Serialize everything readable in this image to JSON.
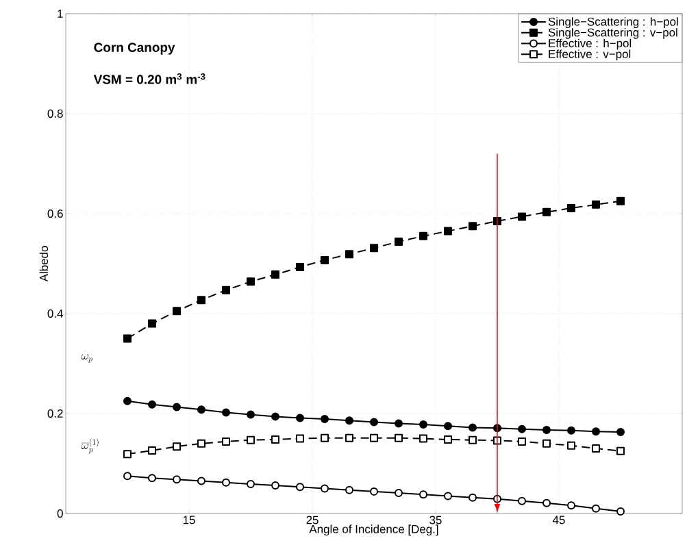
{
  "chart_data": {
    "type": "line",
    "xlabel": "Angle of Incidence [Deg.]",
    "ylabel": "Albedo",
    "x": [
      10,
      12,
      14,
      16,
      18,
      20,
      22,
      24,
      26,
      28,
      30,
      32,
      34,
      36,
      38,
      40,
      42,
      44,
      46,
      48,
      50
    ],
    "xlim": [
      5,
      55
    ],
    "xticks": [
      15,
      25,
      35,
      45
    ],
    "ylim": [
      0,
      1
    ],
    "yticks": [
      0,
      {
        "value": 0.2,
        "label": "0.2"
      },
      {
        "value": 0.4,
        "label": "0.4"
      },
      {
        "value": 0.6,
        "label": "0.6"
      },
      {
        "value": 0.8,
        "label": "0.8"
      },
      1
    ],
    "grid": true,
    "legend": "top right",
    "series": [
      {
        "name": "Single−Scattering : h−pol",
        "color": "#000000",
        "marker": "circle",
        "line_style": "solid",
        "values": [
          0.225,
          0.218,
          0.213,
          0.208,
          0.202,
          0.198,
          0.194,
          0.191,
          0.189,
          0.186,
          0.183,
          0.18,
          0.178,
          0.175,
          0.172,
          0.171,
          0.169,
          0.167,
          0.166,
          0.164,
          0.163
        ]
      },
      {
        "name": "Single−Scattering : v−pol",
        "color": "#000000",
        "marker": "square",
        "line_style": "dashed",
        "values": [
          0.35,
          0.38,
          0.405,
          0.427,
          0.447,
          0.464,
          0.478,
          0.493,
          0.507,
          0.519,
          0.531,
          0.544,
          0.555,
          0.565,
          0.575,
          0.585,
          0.594,
          0.603,
          0.611,
          0.618,
          0.625
        ]
      },
      {
        "name": "Effective : h−pol",
        "color": "#000000",
        "marker": "circle",
        "line_style": "solid",
        "values": [
          0.075,
          0.071,
          0.068,
          0.065,
          0.062,
          0.059,
          0.056,
          0.053,
          0.05,
          0.047,
          0.044,
          0.041,
          0.038,
          0.035,
          0.032,
          0.029,
          0.025,
          0.021,
          0.016,
          0.01,
          0.004
        ]
      },
      {
        "name": "Effective : v−pol",
        "color": "#000000",
        "marker": "square",
        "line_style": "dashed",
        "values": [
          0.119,
          0.126,
          0.134,
          0.14,
          0.144,
          0.147,
          0.148,
          0.15,
          0.151,
          0.151,
          0.151,
          0.151,
          0.15,
          0.148,
          0.147,
          0.146,
          0.144,
          0.14,
          0.136,
          0.13,
          0.125
        ]
      }
    ],
    "ref_lines": [
      {
        "axis": "x",
        "value": 40,
        "color": "#ff0000"
      }
    ],
    "annotations": [
      "Corn Canopy",
      "VSM = 0.20 m$^{3}$ m$^{-3}$",
      "\\omega_p",
      "\\overline{\\omega}_p^{(1)}"
    ]
  }
}
